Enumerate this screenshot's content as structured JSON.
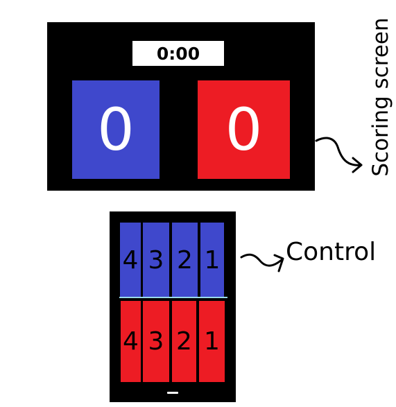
{
  "scoreboard": {
    "timer": "0:00",
    "blue_score": "0",
    "red_score": "0"
  },
  "labels": {
    "scoring_screen": "Scoring screen",
    "control": "Control"
  },
  "control": {
    "blue_buttons": [
      "4",
      "3",
      "2",
      "1"
    ],
    "red_buttons": [
      "4",
      "3",
      "2",
      "1"
    ]
  },
  "colors": {
    "blue": "#3f48cc",
    "red": "#ed1c24",
    "background": "#000000"
  }
}
